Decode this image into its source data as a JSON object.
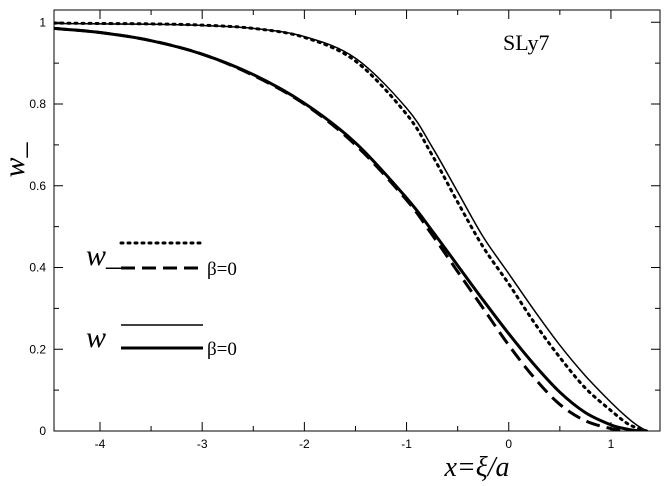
{
  "chart_data": {
    "type": "line",
    "title": "",
    "annotation": "SLy7",
    "xlabel": "x=ξ/a",
    "ylabel": "w_",
    "xlim": [
      -4.45,
      1.48
    ],
    "ylim": [
      0,
      1.03
    ],
    "xticks": [
      -4,
      -3,
      -2,
      -1,
      0,
      1
    ],
    "yticks": [
      0,
      0.2,
      0.4,
      0.6,
      0.8,
      1
    ],
    "x": [
      -4.45,
      -4.0,
      -3.5,
      -3.0,
      -2.5,
      -2.0,
      -1.5,
      -1.0,
      -0.75,
      -0.5,
      -0.25,
      0.0,
      0.25,
      0.5,
      0.75,
      1.0,
      1.15,
      1.25,
      1.35
    ],
    "series": [
      {
        "name": "w_",
        "style": "dotted",
        "weight": "bold",
        "values": [
          0.998,
          0.997,
          0.996,
          0.993,
          0.985,
          0.963,
          0.905,
          0.775,
          0.675,
          0.56,
          0.45,
          0.36,
          0.265,
          0.18,
          0.105,
          0.05,
          0.02,
          0.008,
          0.0
        ]
      },
      {
        "name": "w_ β=0",
        "style": "dashed",
        "weight": "bold",
        "values": [
          0.985,
          0.975,
          0.955,
          0.922,
          0.87,
          0.8,
          0.7,
          0.565,
          0.48,
          0.39,
          0.3,
          0.21,
          0.13,
          0.065,
          0.025,
          0.006,
          0.001,
          0.0,
          0.0
        ]
      },
      {
        "name": "w",
        "style": "solid",
        "weight": "thin",
        "values": [
          0.997,
          0.996,
          0.995,
          0.992,
          0.985,
          0.965,
          0.912,
          0.79,
          0.695,
          0.585,
          0.475,
          0.385,
          0.295,
          0.21,
          0.135,
          0.07,
          0.035,
          0.015,
          0.0
        ]
      },
      {
        "name": "w β=0",
        "style": "solid",
        "weight": "bold",
        "values": [
          0.985,
          0.975,
          0.955,
          0.922,
          0.872,
          0.802,
          0.705,
          0.57,
          0.49,
          0.405,
          0.32,
          0.238,
          0.162,
          0.095,
          0.045,
          0.015,
          0.005,
          0.001,
          0.0
        ]
      }
    ],
    "legend": {
      "placement": "left-center",
      "groups": [
        {
          "symbol": "w_",
          "entries": [
            {
              "series": 0,
              "label": ""
            },
            {
              "series": 1,
              "label": "β=0"
            }
          ]
        },
        {
          "symbol": "w",
          "entries": [
            {
              "series": 2,
              "label": ""
            },
            {
              "series": 3,
              "label": "β=0"
            }
          ]
        }
      ]
    },
    "grid": false
  }
}
